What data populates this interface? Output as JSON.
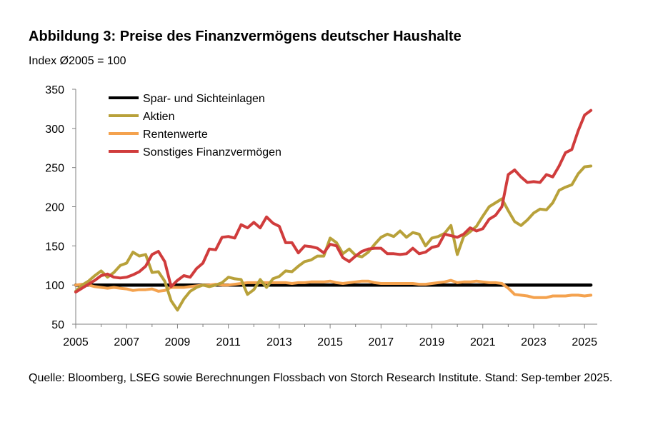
{
  "header": {
    "title": "Abbildung 3: Preise des Finanzvermögens deutscher Haushalte",
    "subtitle": "Index Ø2005 = 100"
  },
  "footer": {
    "source": "Quelle: Bloomberg, LSEG sowie Berechnungen Flossbach von Storch Research Institute. Stand: Sep-tember 2025."
  },
  "chart_data": {
    "type": "line",
    "title": "Abbildung 3: Preise des Finanzvermögens deutscher Haushalte",
    "ylabel": "Index Ø2005 = 100",
    "xlabel": "",
    "xlim": [
      2005,
      2025.5
    ],
    "ylim": [
      50,
      350
    ],
    "x_ticks": [
      2005,
      2007,
      2009,
      2011,
      2013,
      2015,
      2017,
      2019,
      2021,
      2023,
      2025
    ],
    "y_ticks": [
      50,
      100,
      150,
      200,
      250,
      300,
      350
    ],
    "legend_position": "top-left",
    "grid": false,
    "series": [
      {
        "name": "Spar- und Sichteinlagen",
        "color": "#000000",
        "points": [
          [
            2005,
            100
          ],
          [
            2025.25,
            100
          ]
        ]
      },
      {
        "name": "Aktien",
        "color": "#b8a13a",
        "points": [
          [
            2005,
            92
          ],
          [
            2005.25,
            100
          ],
          [
            2005.5,
            105
          ],
          [
            2005.75,
            112
          ],
          [
            2006,
            118
          ],
          [
            2006.25,
            110
          ],
          [
            2006.5,
            116
          ],
          [
            2006.75,
            125
          ],
          [
            2007,
            128
          ],
          [
            2007.25,
            142
          ],
          [
            2007.5,
            137
          ],
          [
            2007.75,
            139
          ],
          [
            2008,
            116
          ],
          [
            2008.25,
            117
          ],
          [
            2008.5,
            105
          ],
          [
            2008.75,
            80
          ],
          [
            2009,
            68
          ],
          [
            2009.25,
            82
          ],
          [
            2009.5,
            92
          ],
          [
            2009.75,
            97
          ],
          [
            2010,
            100
          ],
          [
            2010.25,
            98
          ],
          [
            2010.5,
            100
          ],
          [
            2010.75,
            103
          ],
          [
            2011,
            110
          ],
          [
            2011.25,
            108
          ],
          [
            2011.5,
            107
          ],
          [
            2011.75,
            88
          ],
          [
            2012,
            94
          ],
          [
            2012.25,
            107
          ],
          [
            2012.5,
            97
          ],
          [
            2012.75,
            108
          ],
          [
            2013,
            111
          ],
          [
            2013.25,
            118
          ],
          [
            2013.5,
            117
          ],
          [
            2013.75,
            124
          ],
          [
            2014,
            130
          ],
          [
            2014.25,
            132
          ],
          [
            2014.5,
            137
          ],
          [
            2014.75,
            137
          ],
          [
            2015,
            160
          ],
          [
            2015.25,
            154
          ],
          [
            2015.5,
            140
          ],
          [
            2015.75,
            146
          ],
          [
            2016,
            138
          ],
          [
            2016.25,
            136
          ],
          [
            2016.5,
            142
          ],
          [
            2016.75,
            152
          ],
          [
            2017,
            161
          ],
          [
            2017.25,
            165
          ],
          [
            2017.5,
            162
          ],
          [
            2017.75,
            169
          ],
          [
            2018,
            161
          ],
          [
            2018.25,
            167
          ],
          [
            2018.5,
            165
          ],
          [
            2018.75,
            150
          ],
          [
            2019,
            160
          ],
          [
            2019.25,
            162
          ],
          [
            2019.5,
            166
          ],
          [
            2019.75,
            176
          ],
          [
            2020,
            139
          ],
          [
            2020.25,
            162
          ],
          [
            2020.5,
            168
          ],
          [
            2020.75,
            175
          ],
          [
            2021,
            188
          ],
          [
            2021.25,
            200
          ],
          [
            2021.5,
            205
          ],
          [
            2021.75,
            210
          ],
          [
            2022,
            195
          ],
          [
            2022.25,
            181
          ],
          [
            2022.5,
            176
          ],
          [
            2022.75,
            183
          ],
          [
            2023,
            192
          ],
          [
            2023.25,
            197
          ],
          [
            2023.5,
            196
          ],
          [
            2023.75,
            205
          ],
          [
            2024,
            221
          ],
          [
            2024.25,
            225
          ],
          [
            2024.5,
            228
          ],
          [
            2024.75,
            242
          ],
          [
            2025,
            251
          ],
          [
            2025.25,
            252
          ]
        ]
      },
      {
        "name": "Rentenwerte",
        "color": "#f4a24e",
        "points": [
          [
            2005,
            100
          ],
          [
            2005.25,
            101
          ],
          [
            2005.5,
            100
          ],
          [
            2005.75,
            98
          ],
          [
            2006,
            97
          ],
          [
            2006.25,
            96
          ],
          [
            2006.5,
            97
          ],
          [
            2006.75,
            96
          ],
          [
            2007,
            95
          ],
          [
            2007.25,
            93
          ],
          [
            2007.5,
            94
          ],
          [
            2007.75,
            94
          ],
          [
            2008,
            95
          ],
          [
            2008.25,
            92
          ],
          [
            2008.5,
            93
          ],
          [
            2008.75,
            97
          ],
          [
            2009,
            97
          ],
          [
            2009.25,
            97
          ],
          [
            2009.5,
            98
          ],
          [
            2009.75,
            99
          ],
          [
            2010,
            100
          ],
          [
            2010.25,
            100
          ],
          [
            2010.5,
            101
          ],
          [
            2010.75,
            100
          ],
          [
            2011,
            100
          ],
          [
            2011.25,
            101
          ],
          [
            2011.5,
            102
          ],
          [
            2011.75,
            103
          ],
          [
            2012,
            103
          ],
          [
            2012.25,
            103
          ],
          [
            2012.5,
            103
          ],
          [
            2012.75,
            103
          ],
          [
            2013,
            103
          ],
          [
            2013.25,
            103
          ],
          [
            2013.5,
            102
          ],
          [
            2013.75,
            103
          ],
          [
            2014,
            103
          ],
          [
            2014.25,
            104
          ],
          [
            2014.5,
            104
          ],
          [
            2014.75,
            104
          ],
          [
            2015,
            105
          ],
          [
            2015.25,
            103
          ],
          [
            2015.5,
            102
          ],
          [
            2015.75,
            103
          ],
          [
            2016,
            104
          ],
          [
            2016.25,
            105
          ],
          [
            2016.5,
            105
          ],
          [
            2016.75,
            103
          ],
          [
            2017,
            102
          ],
          [
            2017.25,
            102
          ],
          [
            2017.5,
            102
          ],
          [
            2017.75,
            102
          ],
          [
            2018,
            102
          ],
          [
            2018.25,
            102
          ],
          [
            2018.5,
            101
          ],
          [
            2018.75,
            101
          ],
          [
            2019,
            102
          ],
          [
            2019.25,
            103
          ],
          [
            2019.5,
            104
          ],
          [
            2019.75,
            106
          ],
          [
            2020,
            103
          ],
          [
            2020.25,
            104
          ],
          [
            2020.5,
            104
          ],
          [
            2020.75,
            105
          ],
          [
            2021,
            104
          ],
          [
            2021.25,
            103
          ],
          [
            2021.5,
            103
          ],
          [
            2021.75,
            102
          ],
          [
            2022,
            96
          ],
          [
            2022.25,
            88
          ],
          [
            2022.5,
            87
          ],
          [
            2022.75,
            86
          ],
          [
            2023,
            84
          ],
          [
            2023.25,
            84
          ],
          [
            2023.5,
            84
          ],
          [
            2023.75,
            86
          ],
          [
            2024,
            86
          ],
          [
            2024.25,
            86
          ],
          [
            2024.5,
            87
          ],
          [
            2024.75,
            87
          ],
          [
            2025,
            86
          ],
          [
            2025.25,
            87
          ]
        ]
      },
      {
        "name": "Sonstiges Finanzvermögen",
        "color": "#d03c3c",
        "points": [
          [
            2005,
            91
          ],
          [
            2005.25,
            96
          ],
          [
            2005.5,
            101
          ],
          [
            2005.75,
            106
          ],
          [
            2006,
            112
          ],
          [
            2006.25,
            114
          ],
          [
            2006.5,
            110
          ],
          [
            2006.75,
            109
          ],
          [
            2007,
            110
          ],
          [
            2007.25,
            113
          ],
          [
            2007.5,
            117
          ],
          [
            2007.75,
            124
          ],
          [
            2008,
            139
          ],
          [
            2008.25,
            143
          ],
          [
            2008.5,
            130
          ],
          [
            2008.75,
            98
          ],
          [
            2009,
            106
          ],
          [
            2009.25,
            112
          ],
          [
            2009.5,
            110
          ],
          [
            2009.75,
            121
          ],
          [
            2010,
            128
          ],
          [
            2010.25,
            146
          ],
          [
            2010.5,
            145
          ],
          [
            2010.75,
            161
          ],
          [
            2011,
            162
          ],
          [
            2011.25,
            160
          ],
          [
            2011.5,
            177
          ],
          [
            2011.75,
            173
          ],
          [
            2012,
            180
          ],
          [
            2012.25,
            173
          ],
          [
            2012.5,
            187
          ],
          [
            2012.75,
            179
          ],
          [
            2013,
            175
          ],
          [
            2013.25,
            154
          ],
          [
            2013.5,
            154
          ],
          [
            2013.75,
            141
          ],
          [
            2014,
            150
          ],
          [
            2014.25,
            149
          ],
          [
            2014.5,
            147
          ],
          [
            2014.75,
            141
          ],
          [
            2015,
            152
          ],
          [
            2015.25,
            150
          ],
          [
            2015.5,
            135
          ],
          [
            2015.75,
            130
          ],
          [
            2016,
            137
          ],
          [
            2016.25,
            143
          ],
          [
            2016.5,
            146
          ],
          [
            2016.75,
            147
          ],
          [
            2017,
            147
          ],
          [
            2017.25,
            140
          ],
          [
            2017.5,
            140
          ],
          [
            2017.75,
            139
          ],
          [
            2018,
            140
          ],
          [
            2018.25,
            147
          ],
          [
            2018.5,
            140
          ],
          [
            2018.75,
            142
          ],
          [
            2019,
            148
          ],
          [
            2019.25,
            150
          ],
          [
            2019.5,
            165
          ],
          [
            2019.75,
            163
          ],
          [
            2020,
            161
          ],
          [
            2020.25,
            165
          ],
          [
            2020.5,
            173
          ],
          [
            2020.75,
            169
          ],
          [
            2021,
            172
          ],
          [
            2021.25,
            184
          ],
          [
            2021.5,
            189
          ],
          [
            2021.75,
            200
          ],
          [
            2022,
            241
          ],
          [
            2022.25,
            247
          ],
          [
            2022.5,
            238
          ],
          [
            2022.75,
            231
          ],
          [
            2023,
            232
          ],
          [
            2023.25,
            231
          ],
          [
            2023.5,
            241
          ],
          [
            2023.75,
            238
          ],
          [
            2024,
            252
          ],
          [
            2024.25,
            269
          ],
          [
            2024.5,
            273
          ],
          [
            2024.75,
            297
          ],
          [
            2025,
            317
          ],
          [
            2025.25,
            323
          ]
        ]
      }
    ]
  }
}
